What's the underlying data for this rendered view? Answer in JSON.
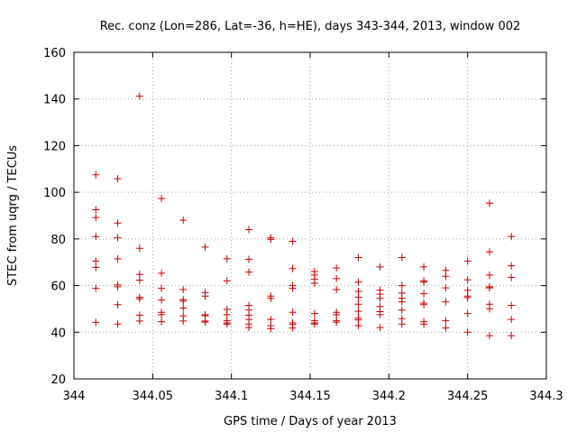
{
  "chart_data": {
    "type": "scatter",
    "title": "Rec. conz (Lon=286, Lat=-36, h=HE), days 343-344, 2013, window 002",
    "xlabel": "GPS time / Days of year 2013",
    "ylabel": "STEC from uqrg / TECUs",
    "xlim": [
      344,
      344.3
    ],
    "ylim": [
      20,
      160
    ],
    "xticks": [
      "344",
      "344.05",
      "344.1",
      "344.15",
      "344.2",
      "344.25",
      "344.3"
    ],
    "yticks": [
      "20",
      "40",
      "60",
      "80",
      "100",
      "120",
      "140",
      "160"
    ],
    "grid": true,
    "marker": "+",
    "color": "#cc0000",
    "points": [
      [
        344.0139,
        107.5
      ],
      [
        344.0139,
        92.5
      ],
      [
        344.0139,
        89.2
      ],
      [
        344.0139,
        81.0
      ],
      [
        344.0139,
        70.5
      ],
      [
        344.0139,
        67.8
      ],
      [
        344.0139,
        58.8
      ],
      [
        344.0139,
        44.2
      ],
      [
        344.0278,
        105.8
      ],
      [
        344.0278,
        86.8
      ],
      [
        344.0278,
        80.5
      ],
      [
        344.0278,
        71.5
      ],
      [
        344.0278,
        60.3
      ],
      [
        344.0278,
        59.5
      ],
      [
        344.0278,
        51.8
      ],
      [
        344.0278,
        43.5
      ],
      [
        344.0417,
        141.2
      ],
      [
        344.0417,
        76.0
      ],
      [
        344.0417,
        64.8
      ],
      [
        344.0417,
        62.3
      ],
      [
        344.0417,
        55.0
      ],
      [
        344.0417,
        54.3
      ],
      [
        344.0417,
        47.3
      ],
      [
        344.0417,
        44.8
      ],
      [
        344.0556,
        97.3
      ],
      [
        344.0556,
        65.3
      ],
      [
        344.0556,
        58.8
      ],
      [
        344.0556,
        53.8
      ],
      [
        344.0556,
        48.5
      ],
      [
        344.0556,
        47.5
      ],
      [
        344.0556,
        44.5
      ],
      [
        344.0694,
        88.0
      ],
      [
        344.0694,
        58.3
      ],
      [
        344.0694,
        54.0
      ],
      [
        344.0694,
        53.3
      ],
      [
        344.0694,
        50.3
      ],
      [
        344.0694,
        47.0
      ],
      [
        344.0694,
        44.8
      ],
      [
        344.0833,
        76.5
      ],
      [
        344.0833,
        57.0
      ],
      [
        344.0833,
        55.5
      ],
      [
        344.0833,
        47.5
      ],
      [
        344.0833,
        47.0
      ],
      [
        344.0833,
        44.8
      ],
      [
        344.0833,
        44.3
      ],
      [
        344.0972,
        71.5
      ],
      [
        344.0972,
        62.0
      ],
      [
        344.0972,
        49.8
      ],
      [
        344.0972,
        47.5
      ],
      [
        344.0972,
        45.0
      ],
      [
        344.0972,
        44.0
      ],
      [
        344.0972,
        43.5
      ],
      [
        344.1111,
        84.0
      ],
      [
        344.1111,
        71.3
      ],
      [
        344.1111,
        65.8
      ],
      [
        344.1111,
        51.5
      ],
      [
        344.1111,
        49.5
      ],
      [
        344.1111,
        47.3
      ],
      [
        344.1111,
        45.5
      ],
      [
        344.1111,
        43.5
      ],
      [
        344.1111,
        42.0
      ],
      [
        344.125,
        80.5
      ],
      [
        344.125,
        79.8
      ],
      [
        344.125,
        55.5
      ],
      [
        344.125,
        54.5
      ],
      [
        344.125,
        45.5
      ],
      [
        344.125,
        42.8
      ],
      [
        344.125,
        41.5
      ],
      [
        344.1389,
        79.0
      ],
      [
        344.1389,
        67.3
      ],
      [
        344.1389,
        60.0
      ],
      [
        344.1389,
        58.8
      ],
      [
        344.1389,
        48.5
      ],
      [
        344.1389,
        44.0
      ],
      [
        344.1389,
        43.3
      ],
      [
        344.1389,
        41.8
      ],
      [
        344.1528,
        66.0
      ],
      [
        344.1528,
        64.5
      ],
      [
        344.1528,
        62.8
      ],
      [
        344.1528,
        61.0
      ],
      [
        344.1528,
        48.0
      ],
      [
        344.1528,
        45.0
      ],
      [
        344.1528,
        44.0
      ],
      [
        344.1528,
        43.5
      ],
      [
        344.1667,
        67.5
      ],
      [
        344.1667,
        63.0
      ],
      [
        344.1667,
        58.3
      ],
      [
        344.1667,
        48.5
      ],
      [
        344.1667,
        47.5
      ],
      [
        344.1667,
        45.0
      ],
      [
        344.1667,
        44.3
      ],
      [
        344.1806,
        72.0
      ],
      [
        344.1806,
        61.5
      ],
      [
        344.1806,
        57.5
      ],
      [
        344.1806,
        55.0
      ],
      [
        344.1806,
        52.0
      ],
      [
        344.1806,
        49.0
      ],
      [
        344.1806,
        46.0
      ],
      [
        344.1806,
        45.3
      ],
      [
        344.1806,
        42.8
      ],
      [
        344.1944,
        68.0
      ],
      [
        344.1944,
        58.0
      ],
      [
        344.1944,
        56.3
      ],
      [
        344.1944,
        54.5
      ],
      [
        344.1944,
        51.0
      ],
      [
        344.1944,
        48.8
      ],
      [
        344.1944,
        47.5
      ],
      [
        344.1944,
        42.0
      ],
      [
        344.2083,
        72.0
      ],
      [
        344.2083,
        60.0
      ],
      [
        344.2083,
        56.8
      ],
      [
        344.2083,
        54.5
      ],
      [
        344.2083,
        53.0
      ],
      [
        344.2083,
        49.5
      ],
      [
        344.2083,
        45.8
      ],
      [
        344.2083,
        43.5
      ],
      [
        344.2222,
        68.0
      ],
      [
        344.2222,
        62.0
      ],
      [
        344.2222,
        61.5
      ],
      [
        344.2222,
        56.5
      ],
      [
        344.2222,
        52.5
      ],
      [
        344.2222,
        51.8
      ],
      [
        344.2222,
        44.5
      ],
      [
        344.2222,
        43.5
      ],
      [
        344.2361,
        66.5
      ],
      [
        344.2361,
        64.0
      ],
      [
        344.2361,
        59.0
      ],
      [
        344.2361,
        53.0
      ],
      [
        344.2361,
        45.0
      ],
      [
        344.2361,
        41.8
      ],
      [
        344.25,
        70.5
      ],
      [
        344.25,
        62.5
      ],
      [
        344.25,
        58.0
      ],
      [
        344.25,
        55.5
      ],
      [
        344.25,
        54.8
      ],
      [
        344.25,
        48.0
      ],
      [
        344.25,
        40.0
      ],
      [
        344.2639,
        95.3
      ],
      [
        344.2639,
        74.5
      ],
      [
        344.2639,
        64.5
      ],
      [
        344.2639,
        59.5
      ],
      [
        344.2639,
        59.0
      ],
      [
        344.2639,
        52.0
      ],
      [
        344.2639,
        50.0
      ],
      [
        344.2639,
        38.5
      ],
      [
        344.2778,
        81.0
      ],
      [
        344.2778,
        68.5
      ],
      [
        344.2778,
        63.5
      ],
      [
        344.2778,
        51.5
      ],
      [
        344.2778,
        45.5
      ],
      [
        344.2778,
        38.5
      ]
    ]
  }
}
